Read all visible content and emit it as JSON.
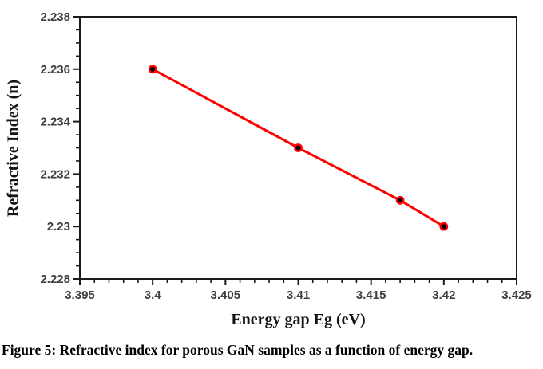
{
  "figure": {
    "caption": "Figure 5: Refractive index for porous GaN samples as a function of energy gap."
  },
  "chart_data": {
    "type": "line",
    "title": "",
    "xlabel": "Energy gap Eg (eV)",
    "ylabel": "Refractive Index (n)",
    "x": [
      3.4,
      3.41,
      3.417,
      3.42
    ],
    "y": [
      2.236,
      2.233,
      2.231,
      2.23
    ],
    "xlim": [
      3.395,
      3.425
    ],
    "ylim": [
      2.228,
      2.238
    ],
    "x_major_ticks": [
      3.395,
      3.4,
      3.405,
      3.41,
      3.415,
      3.42,
      3.425
    ],
    "x_tick_labels": [
      "3.395",
      "3.4",
      "3.405",
      "3.41",
      "3.415",
      "3.42",
      "3.425"
    ],
    "x_minor_step": 0.001,
    "y_major_ticks": [
      2.238,
      2.236,
      2.234,
      2.232,
      2.23,
      2.228
    ],
    "y_tick_labels": [
      "2.238",
      "2.236",
      "2.234",
      "2.232",
      "2.23",
      "2.228"
    ],
    "y_minor_step": 0.0005,
    "grid": false,
    "legend": null,
    "line_color": "#fe0000",
    "marker_color": "#000000",
    "axis_color": "#1a1a1a",
    "tick_label_color": "#3f3f3f"
  }
}
